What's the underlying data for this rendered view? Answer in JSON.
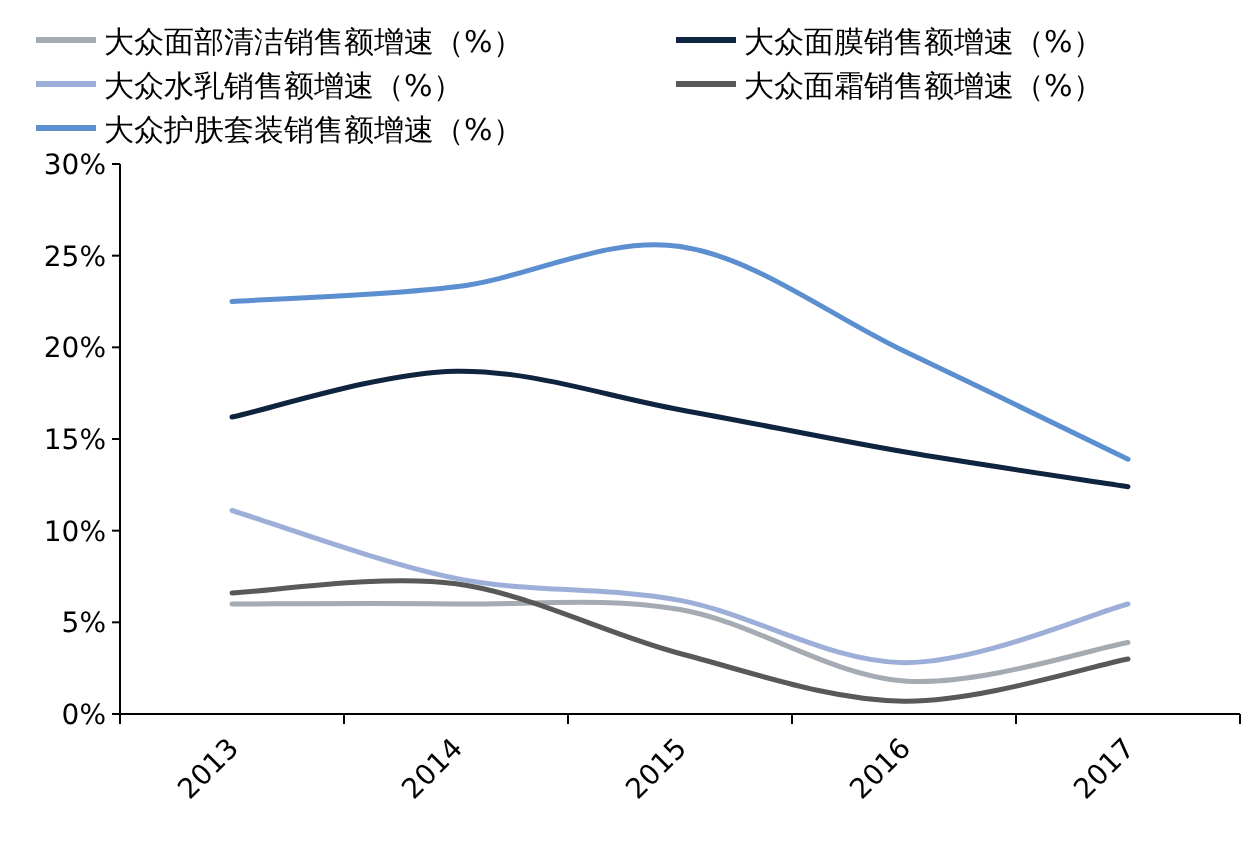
{
  "chart_data": {
    "type": "line",
    "categories": [
      "2013",
      "2014",
      "2015",
      "2016",
      "2017"
    ],
    "series": [
      {
        "name": "大众面部清洁销售额增速（%）",
        "color": "#a5abb3",
        "values": [
          6.0,
          6.0,
          5.7,
          1.8,
          3.9
        ]
      },
      {
        "name": "大众面膜销售额增速（%）",
        "color": "#0f243e",
        "values": [
          16.2,
          18.7,
          16.6,
          14.3,
          12.4
        ]
      },
      {
        "name": "大众水乳销售额增速（%）",
        "color": "#9dafd8",
        "values": [
          11.1,
          7.4,
          6.2,
          2.8,
          6.0
        ]
      },
      {
        "name": "大众面霜销售额增速（%）",
        "color": "#595959",
        "values": [
          6.6,
          7.1,
          3.3,
          0.7,
          3.0
        ]
      },
      {
        "name": "大众护肤套装销售额增速（%）",
        "color": "#5b8fd0",
        "values": [
          22.5,
          23.3,
          25.5,
          19.8,
          13.9
        ]
      }
    ],
    "ylim": [
      0,
      30
    ],
    "yticks": [
      {
        "value": 0,
        "label": "0%"
      },
      {
        "value": 5,
        "label": "5%"
      },
      {
        "value": 10,
        "label": "10%"
      },
      {
        "value": 15,
        "label": "15%"
      },
      {
        "value": 20,
        "label": "20%"
      },
      {
        "value": 25,
        "label": "25%"
      },
      {
        "value": 30,
        "label": "30%"
      }
    ],
    "legend": "top",
    "grid": false
  }
}
